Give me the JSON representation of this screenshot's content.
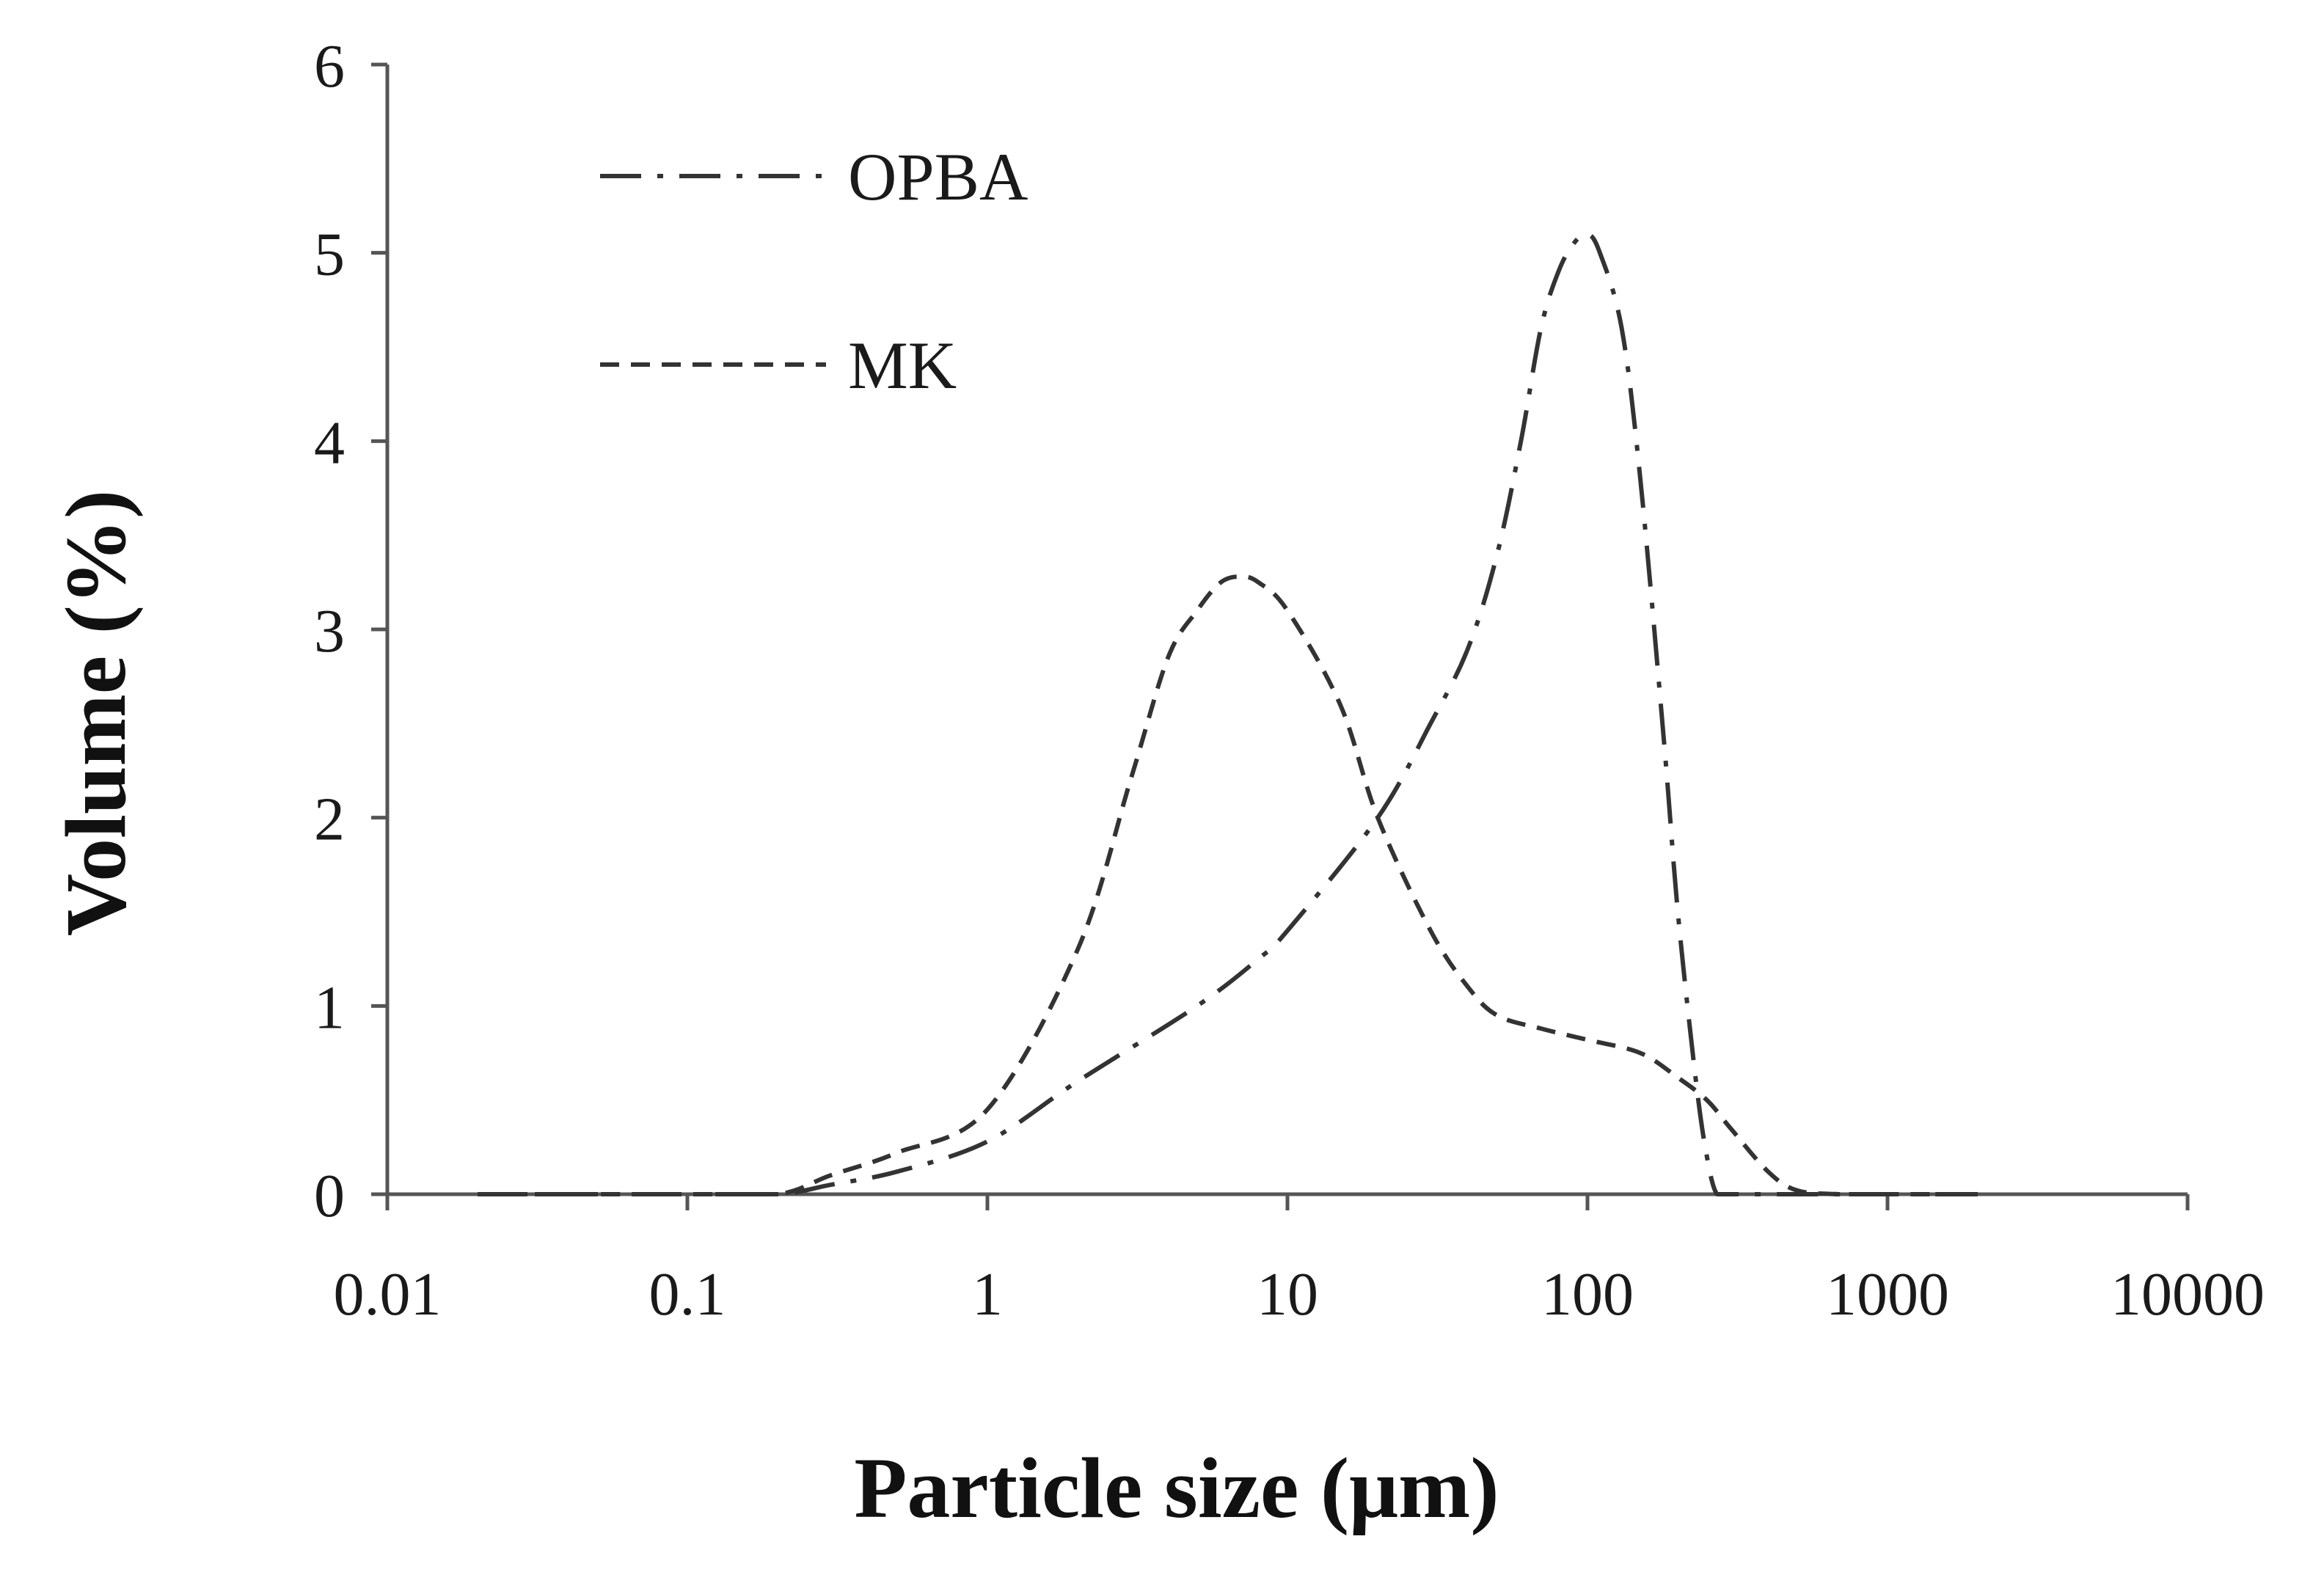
{
  "chart_data": {
    "type": "line",
    "xscale": "log",
    "xlabel": "Particle size (μm)",
    "ylabel": "Volume (%)",
    "xlim": [
      0.01,
      10000
    ],
    "ylim": [
      0,
      6
    ],
    "x_ticks": [
      0.01,
      0.1,
      1,
      10,
      100,
      1000,
      10000
    ],
    "x_tick_labels": [
      "0.01",
      "0.1",
      "1",
      "10",
      "100",
      "1000",
      "10000"
    ],
    "y_ticks": [
      0,
      1,
      2,
      3,
      4,
      5,
      6
    ],
    "y_tick_labels": [
      "0",
      "1",
      "2",
      "3",
      "4",
      "5",
      "6"
    ],
    "legend_position": "top-left",
    "series": [
      {
        "name": "OPBA",
        "style": "dash-dot",
        "color": "#333333",
        "x": [
          0.02,
          0.05,
          0.1,
          0.2,
          0.3,
          0.5,
          1,
          2,
          5,
          8,
          10,
          20,
          30,
          40,
          50,
          60,
          70,
          80,
          90,
          100,
          110,
          130,
          150,
          180,
          200,
          230,
          250,
          270,
          300,
          400,
          700,
          1000,
          2000
        ],
        "values": [
          0,
          0,
          0,
          0,
          0.05,
          0.12,
          0.28,
          0.6,
          1.0,
          1.25,
          1.4,
          2.0,
          2.5,
          2.9,
          3.4,
          4.0,
          4.6,
          4.9,
          5.05,
          5.1,
          5.0,
          4.6,
          3.8,
          2.4,
          1.5,
          0.6,
          0.2,
          0,
          0,
          0,
          0,
          0,
          0
        ]
      },
      {
        "name": "MK",
        "style": "dashed",
        "color": "#333333",
        "x": [
          0.02,
          0.05,
          0.1,
          0.2,
          0.3,
          0.5,
          1,
          2,
          3,
          4,
          5,
          6,
          7,
          8,
          10,
          15,
          20,
          30,
          40,
          50,
          70,
          100,
          150,
          200,
          250,
          300,
          400,
          500,
          700,
          1000,
          2000
        ],
        "values": [
          0,
          0,
          0,
          0,
          0.1,
          0.22,
          0.45,
          1.3,
          2.2,
          2.85,
          3.1,
          3.25,
          3.28,
          3.25,
          3.1,
          2.6,
          2.0,
          1.4,
          1.1,
          0.95,
          0.88,
          0.82,
          0.75,
          0.62,
          0.5,
          0.35,
          0.12,
          0.02,
          0,
          0,
          0
        ]
      }
    ]
  }
}
